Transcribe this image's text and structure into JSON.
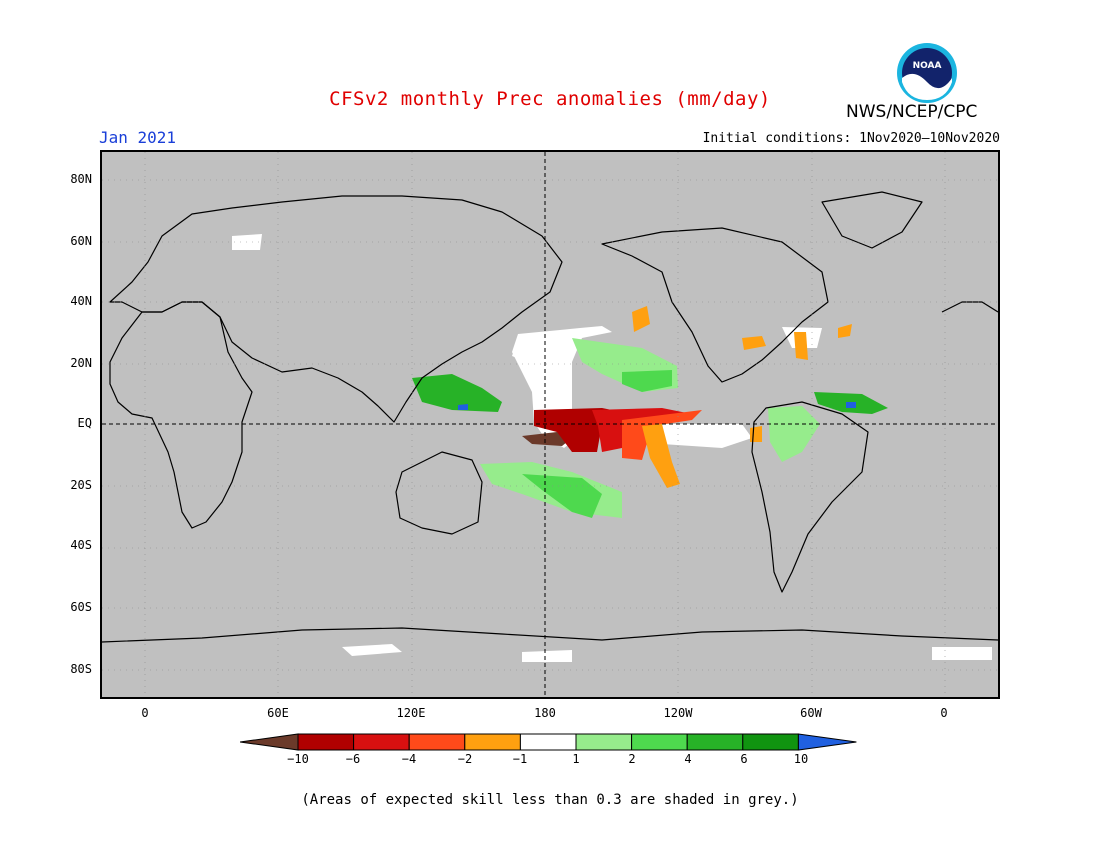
{
  "header": {
    "title": "CFSv2 monthly Prec anomalies (mm/day)",
    "month": "Jan 2021",
    "initial_conditions": "Initial conditions: 1Nov2020–10Nov2020",
    "agency": "NWS/NCEP/CPC",
    "logo_text": "NOAA"
  },
  "map": {
    "lat_labels": [
      "80N",
      "60N",
      "40N",
      "20N",
      "EQ",
      "20S",
      "40S",
      "60S",
      "80S"
    ],
    "lon_labels": [
      "0",
      "60E",
      "120E",
      "180",
      "120W",
      "60W",
      "0"
    ],
    "background_color": "#c0c0c0",
    "reference_lines": [
      "equator",
      "date-line"
    ]
  },
  "colorbar": {
    "labels": [
      "−10",
      "−6",
      "−4",
      "−2",
      "−1",
      "1",
      "2",
      "4",
      "6",
      "10"
    ],
    "colors": [
      "#6b3a2a",
      "#b00000",
      "#d81010",
      "#ff4a1a",
      "#ffa010",
      "#ffffff",
      "#96ec8c",
      "#4ed94e",
      "#27b227",
      "#109410",
      "#2060e0"
    ]
  },
  "footnote": "(Areas of expected skill less than 0.3 are shaded in grey.)"
}
